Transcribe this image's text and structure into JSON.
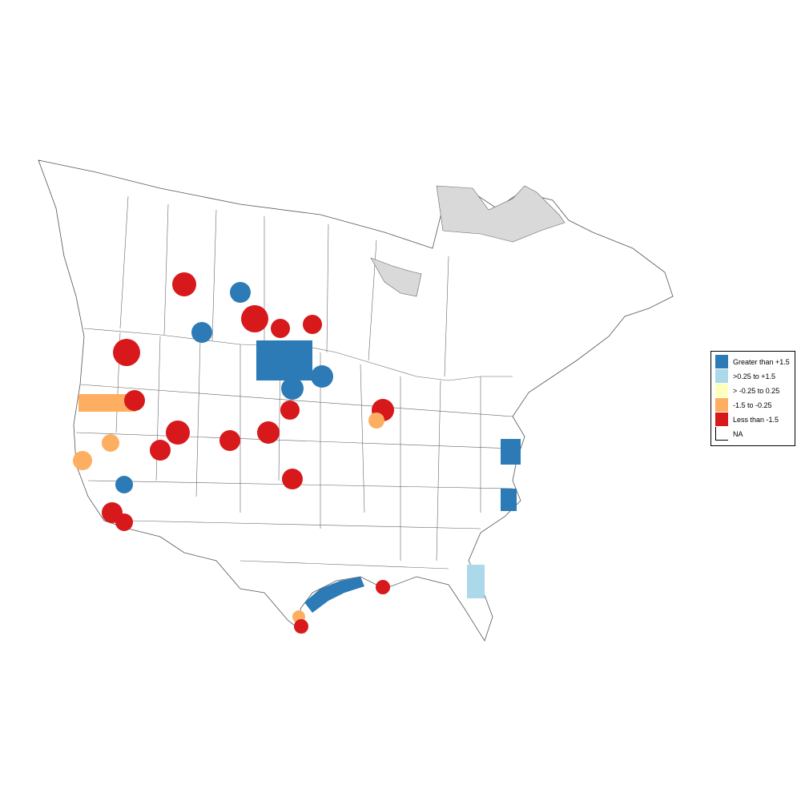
{
  "map": {
    "legend": {
      "entries": [
        {
          "label": "Greater than +1.5",
          "color": "#2c7bb6"
        },
        {
          "label": ">0.25 to +1.5",
          "color": "#abd9e9"
        },
        {
          "label": "> -0.25 to 0.25",
          "color": "#ffffbf"
        },
        {
          "label": "-1.5 to -0.25",
          "color": "#fdae61"
        },
        {
          "label": "Less than -1.5",
          "color": "#d7191c"
        },
        {
          "label": "NA",
          "color": "#ffffff"
        }
      ]
    },
    "colors": {
      "boundary": "#555555",
      "no_data_region": "#d9d9d9"
    }
  }
}
